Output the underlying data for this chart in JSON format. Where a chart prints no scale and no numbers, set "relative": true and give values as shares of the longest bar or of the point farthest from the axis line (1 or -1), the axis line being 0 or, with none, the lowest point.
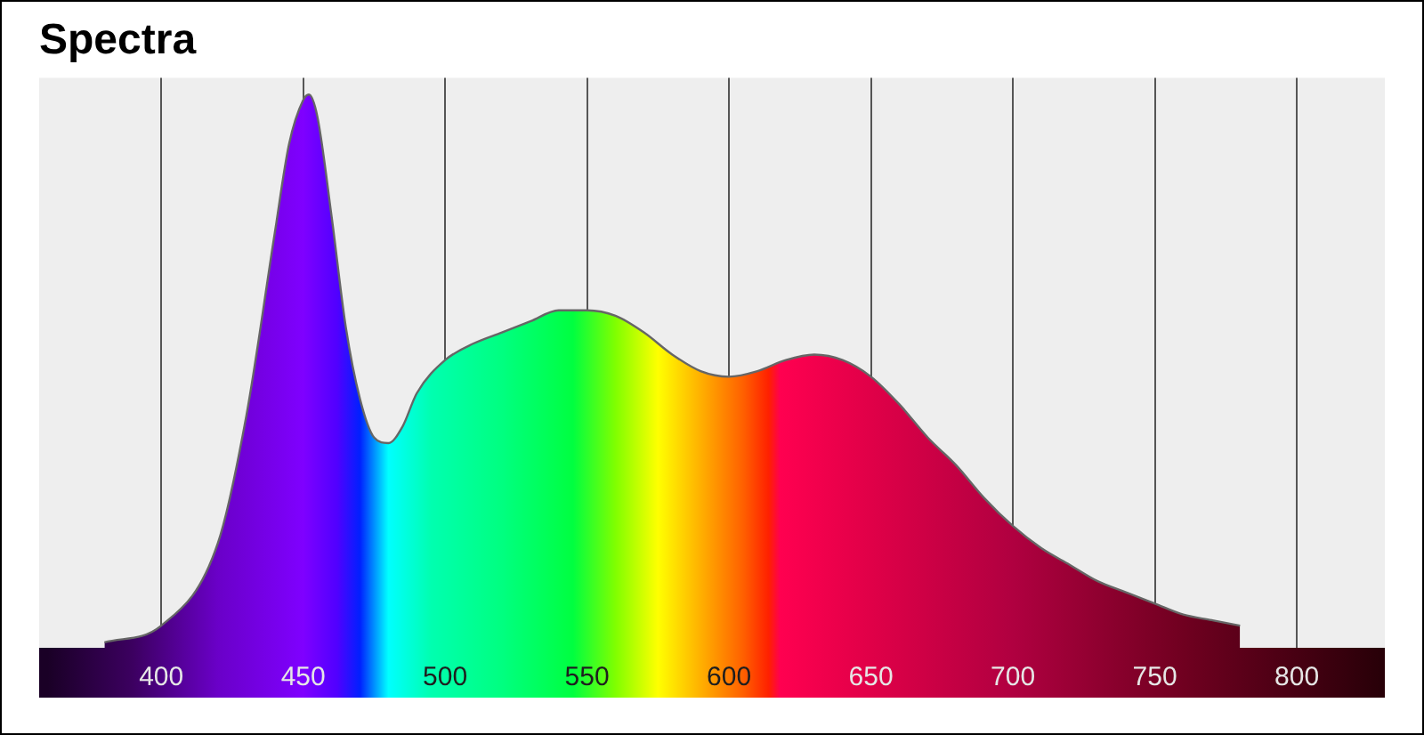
{
  "chart_data": {
    "type": "area",
    "title": "Spectra",
    "relative": true,
    "xlim": [
      357,
      831
    ],
    "xticks": [
      400,
      450,
      500,
      550,
      600,
      650,
      700,
      750,
      800
    ],
    "grid": "x",
    "x": [
      380,
      400,
      420,
      430,
      440,
      445,
      450,
      452,
      455,
      460,
      465,
      470,
      475,
      480,
      485,
      490,
      500,
      510,
      520,
      530,
      540,
      550,
      560,
      570,
      580,
      590,
      600,
      610,
      620,
      630,
      640,
      650,
      660,
      670,
      680,
      690,
      700,
      710,
      720,
      730,
      740,
      750,
      760,
      770,
      780
    ],
    "series": [
      {
        "color": "#666666",
        "values": [
          0.01,
          0.04,
          0.19,
          0.42,
          0.75,
          0.91,
          0.99,
          1,
          0.96,
          0.78,
          0.58,
          0.45,
          0.38,
          0.37,
          0.4,
          0.46,
          0.52,
          0.55,
          0.57,
          0.59,
          0.61,
          0.61,
          0.6,
          0.57,
          0.53,
          0.5,
          0.49,
          0.5,
          0.52,
          0.53,
          0.52,
          0.49,
          0.44,
          0.38,
          0.33,
          0.27,
          0.22,
          0.18,
          0.15,
          0.12,
          0.1,
          0.08,
          0.06,
          0.05,
          0.04
        ]
      }
    ]
  }
}
